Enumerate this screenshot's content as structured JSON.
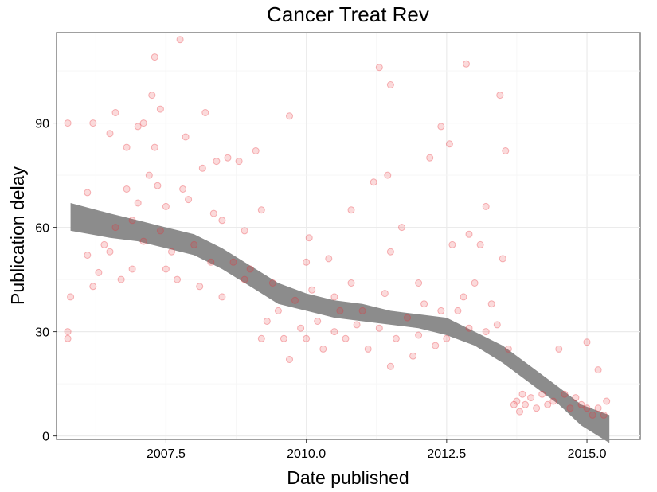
{
  "chart_data": {
    "type": "scatter",
    "title": "Cancer Treat Rev",
    "xlabel": "Date published",
    "ylabel": "Publication delay",
    "xlim": [
      2005.55,
      2015.95
    ],
    "ylim": [
      -1,
      116
    ],
    "x_ticks": [
      2007.5,
      2010.0,
      2012.5,
      2015.0
    ],
    "x_tick_labels": [
      "2007.5",
      "2010.0",
      "2012.5",
      "2015.0"
    ],
    "y_ticks": [
      0,
      30,
      60,
      90
    ],
    "y_tick_labels": [
      "0",
      "30",
      "60",
      "90"
    ],
    "grid": true,
    "point_color": "#e8313a",
    "band_color": "#8c8c8c",
    "points": [
      [
        2005.75,
        90
      ],
      [
        2005.75,
        30
      ],
      [
        2005.75,
        28
      ],
      [
        2005.8,
        40
      ],
      [
        2006.1,
        70
      ],
      [
        2006.2,
        90
      ],
      [
        2006.1,
        52
      ],
      [
        2006.2,
        43
      ],
      [
        2006.3,
        47
      ],
      [
        2006.4,
        55
      ],
      [
        2006.5,
        87
      ],
      [
        2006.6,
        93
      ],
      [
        2006.5,
        53
      ],
      [
        2006.6,
        60
      ],
      [
        2006.7,
        45
      ],
      [
        2006.8,
        71
      ],
      [
        2006.8,
        83
      ],
      [
        2006.9,
        62
      ],
      [
        2006.9,
        48
      ],
      [
        2007.0,
        89
      ],
      [
        2007.0,
        67
      ],
      [
        2007.1,
        90
      ],
      [
        2007.1,
        56
      ],
      [
        2007.2,
        75
      ],
      [
        2007.25,
        98
      ],
      [
        2007.3,
        109
      ],
      [
        2007.3,
        83
      ],
      [
        2007.35,
        72
      ],
      [
        2007.4,
        94
      ],
      [
        2007.4,
        59
      ],
      [
        2007.5,
        66
      ],
      [
        2007.5,
        48
      ],
      [
        2007.6,
        53
      ],
      [
        2007.7,
        45
      ],
      [
        2007.75,
        114
      ],
      [
        2007.8,
        71
      ],
      [
        2007.85,
        86
      ],
      [
        2007.9,
        68
      ],
      [
        2008.0,
        55
      ],
      [
        2008.1,
        43
      ],
      [
        2008.15,
        77
      ],
      [
        2008.2,
        93
      ],
      [
        2008.3,
        50
      ],
      [
        2008.35,
        64
      ],
      [
        2008.4,
        79
      ],
      [
        2008.5,
        62
      ],
      [
        2008.5,
        40
      ],
      [
        2008.6,
        80
      ],
      [
        2008.7,
        50
      ],
      [
        2008.8,
        79
      ],
      [
        2008.9,
        59
      ],
      [
        2008.9,
        45
      ],
      [
        2009.0,
        48
      ],
      [
        2009.1,
        82
      ],
      [
        2009.2,
        65
      ],
      [
        2009.2,
        28
      ],
      [
        2009.3,
        33
      ],
      [
        2009.4,
        44
      ],
      [
        2009.5,
        36
      ],
      [
        2009.6,
        28
      ],
      [
        2009.7,
        92
      ],
      [
        2009.7,
        22
      ],
      [
        2009.8,
        39
      ],
      [
        2009.9,
        31
      ],
      [
        2010.0,
        50
      ],
      [
        2010.0,
        28
      ],
      [
        2010.05,
        57
      ],
      [
        2010.1,
        42
      ],
      [
        2010.2,
        33
      ],
      [
        2010.3,
        25
      ],
      [
        2010.4,
        51
      ],
      [
        2010.5,
        40
      ],
      [
        2010.5,
        30
      ],
      [
        2010.6,
        36
      ],
      [
        2010.7,
        28
      ],
      [
        2010.8,
        44
      ],
      [
        2010.8,
        65
      ],
      [
        2010.9,
        32
      ],
      [
        2011.0,
        36
      ],
      [
        2011.1,
        25
      ],
      [
        2011.2,
        73
      ],
      [
        2011.3,
        106
      ],
      [
        2011.3,
        31
      ],
      [
        2011.4,
        41
      ],
      [
        2011.45,
        75
      ],
      [
        2011.5,
        101
      ],
      [
        2011.5,
        53
      ],
      [
        2011.5,
        20
      ],
      [
        2011.6,
        28
      ],
      [
        2011.7,
        60
      ],
      [
        2011.8,
        34
      ],
      [
        2011.9,
        23
      ],
      [
        2012.0,
        44
      ],
      [
        2012.0,
        29
      ],
      [
        2012.1,
        38
      ],
      [
        2012.2,
        80
      ],
      [
        2012.3,
        26
      ],
      [
        2012.4,
        89
      ],
      [
        2012.4,
        36
      ],
      [
        2012.5,
        28
      ],
      [
        2012.55,
        84
      ],
      [
        2012.6,
        55
      ],
      [
        2012.7,
        36
      ],
      [
        2012.8,
        40
      ],
      [
        2012.85,
        107
      ],
      [
        2012.9,
        58
      ],
      [
        2012.9,
        31
      ],
      [
        2013.0,
        44
      ],
      [
        2013.1,
        55
      ],
      [
        2013.2,
        66
      ],
      [
        2013.2,
        30
      ],
      [
        2013.3,
        38
      ],
      [
        2013.4,
        32
      ],
      [
        2013.45,
        98
      ],
      [
        2013.5,
        51
      ],
      [
        2013.55,
        82
      ],
      [
        2013.6,
        25
      ],
      [
        2013.7,
        9
      ],
      [
        2013.75,
        10
      ],
      [
        2013.8,
        7
      ],
      [
        2013.85,
        12
      ],
      [
        2013.9,
        9
      ],
      [
        2014.0,
        11
      ],
      [
        2014.1,
        8
      ],
      [
        2014.2,
        12
      ],
      [
        2014.3,
        9
      ],
      [
        2014.4,
        10
      ],
      [
        2014.5,
        25
      ],
      [
        2014.6,
        12
      ],
      [
        2014.7,
        8
      ],
      [
        2014.8,
        11
      ],
      [
        2014.9,
        9
      ],
      [
        2015.0,
        27
      ],
      [
        2015.0,
        8
      ],
      [
        2015.1,
        6
      ],
      [
        2015.2,
        19
      ],
      [
        2015.2,
        8
      ],
      [
        2015.3,
        6
      ],
      [
        2015.35,
        10
      ]
    ],
    "band": [
      [
        2005.8,
        67,
        59
      ],
      [
        2006.5,
        64,
        57
      ],
      [
        2007.0,
        62,
        56
      ],
      [
        2007.5,
        60,
        54
      ],
      [
        2008.0,
        58,
        52
      ],
      [
        2008.5,
        54,
        48
      ],
      [
        2009.0,
        49,
        43
      ],
      [
        2009.5,
        44,
        38
      ],
      [
        2010.0,
        41,
        36
      ],
      [
        2010.5,
        39,
        34
      ],
      [
        2011.0,
        38,
        33
      ],
      [
        2011.5,
        36,
        32
      ],
      [
        2012.0,
        35,
        31
      ],
      [
        2012.5,
        34,
        29
      ],
      [
        2013.0,
        30,
        26
      ],
      [
        2013.5,
        26,
        21
      ],
      [
        2014.0,
        20,
        15
      ],
      [
        2014.5,
        14,
        9
      ],
      [
        2014.9,
        9,
        3
      ],
      [
        2015.4,
        6,
        -2
      ]
    ]
  }
}
